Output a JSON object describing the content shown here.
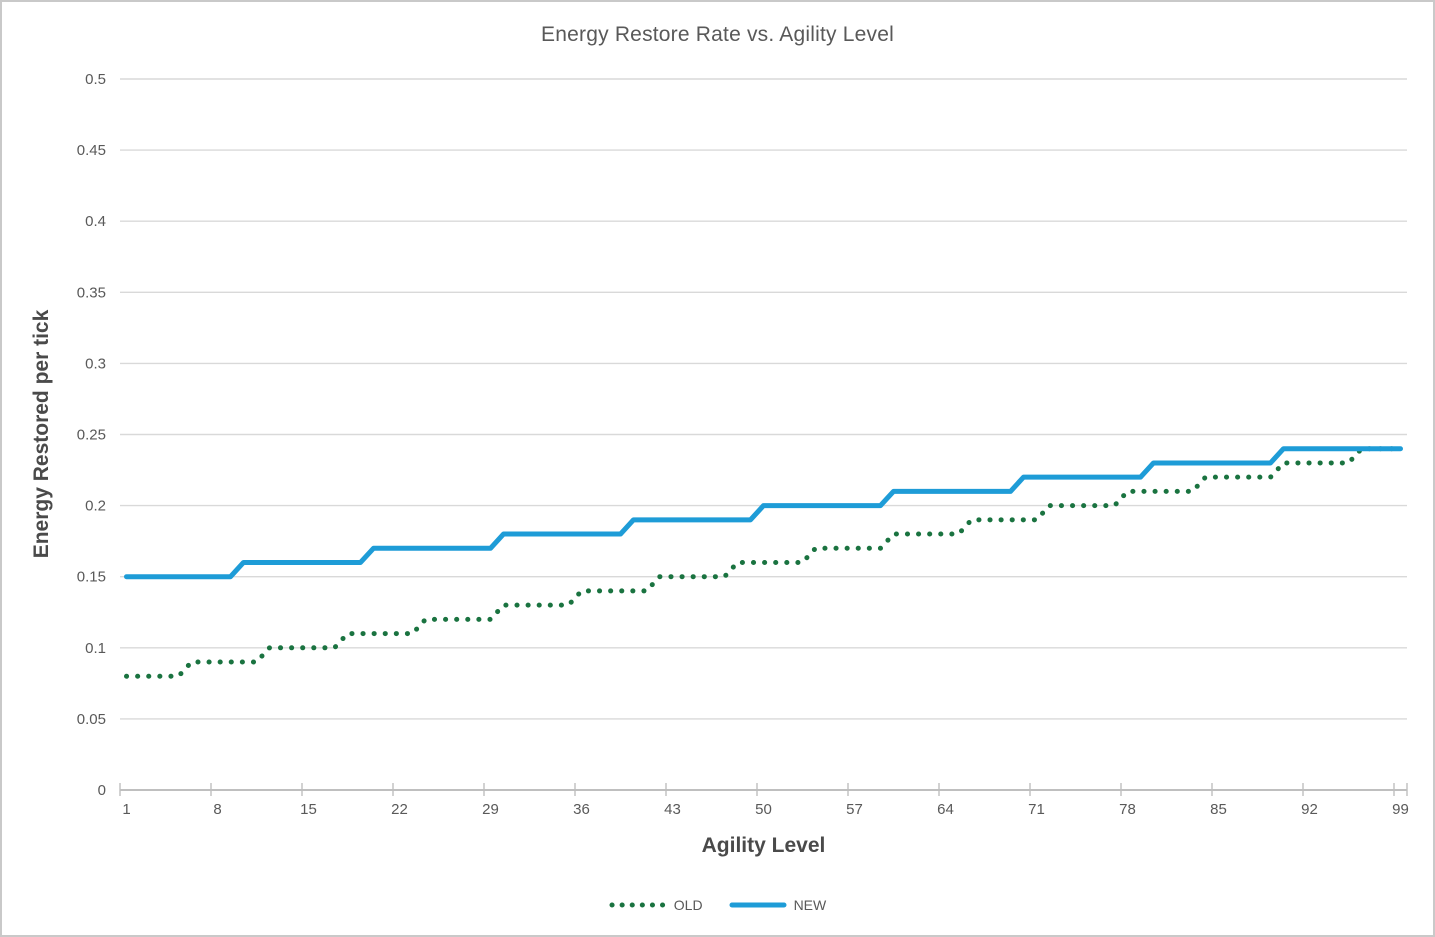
{
  "window": {
    "background": "#ffffff",
    "border_color": "#c9c9c9"
  },
  "chart_data": {
    "type": "line",
    "title": "Energy Restore Rate vs. Agility Level",
    "xlabel": "Agility Level",
    "ylabel": "Energy Restored per tick",
    "ylim": [
      0,
      0.5
    ],
    "grid": "horizontal",
    "legend_position": "bottom",
    "x": [
      1,
      2,
      3,
      4,
      5,
      6,
      7,
      8,
      9,
      10,
      11,
      12,
      13,
      14,
      15,
      16,
      17,
      18,
      19,
      20,
      21,
      22,
      23,
      24,
      25,
      26,
      27,
      28,
      29,
      30,
      31,
      32,
      33,
      34,
      35,
      36,
      37,
      38,
      39,
      40,
      41,
      42,
      43,
      44,
      45,
      46,
      47,
      48,
      49,
      50,
      51,
      52,
      53,
      54,
      55,
      56,
      57,
      58,
      59,
      60,
      61,
      62,
      63,
      64,
      65,
      66,
      67,
      68,
      69,
      70,
      71,
      72,
      73,
      74,
      75,
      76,
      77,
      78,
      79,
      80,
      81,
      82,
      83,
      84,
      85,
      86,
      87,
      88,
      89,
      90,
      91,
      92,
      93,
      94,
      95,
      96,
      97,
      98,
      99
    ],
    "x_tick_labels": [
      1,
      8,
      15,
      22,
      29,
      36,
      43,
      50,
      57,
      64,
      71,
      78,
      85,
      92,
      99
    ],
    "y_ticks": [
      0,
      0.05,
      0.1,
      0.15,
      0.2,
      0.25,
      0.3,
      0.35,
      0.4,
      0.45,
      0.5
    ],
    "y_tick_labels": [
      "0",
      "0.05",
      "0.1",
      "0.15",
      "0.2",
      "0.25",
      "0.3",
      "0.35",
      "0.4",
      "0.45",
      "0.5"
    ],
    "series": [
      {
        "name": "OLD",
        "style": "dotted",
        "color": "#1A7340",
        "values": [
          0.08,
          0.08,
          0.08,
          0.08,
          0.08,
          0.09,
          0.09,
          0.09,
          0.09,
          0.09,
          0.09,
          0.1,
          0.1,
          0.1,
          0.1,
          0.1,
          0.1,
          0.11,
          0.11,
          0.11,
          0.11,
          0.11,
          0.11,
          0.12,
          0.12,
          0.12,
          0.12,
          0.12,
          0.12,
          0.13,
          0.13,
          0.13,
          0.13,
          0.13,
          0.13,
          0.14,
          0.14,
          0.14,
          0.14,
          0.14,
          0.14,
          0.15,
          0.15,
          0.15,
          0.15,
          0.15,
          0.15,
          0.16,
          0.16,
          0.16,
          0.16,
          0.16,
          0.16,
          0.17,
          0.17,
          0.17,
          0.17,
          0.17,
          0.17,
          0.18,
          0.18,
          0.18,
          0.18,
          0.18,
          0.18,
          0.19,
          0.19,
          0.19,
          0.19,
          0.19,
          0.19,
          0.2,
          0.2,
          0.2,
          0.2,
          0.2,
          0.2,
          0.21,
          0.21,
          0.21,
          0.21,
          0.21,
          0.21,
          0.22,
          0.22,
          0.22,
          0.22,
          0.22,
          0.22,
          0.23,
          0.23,
          0.23,
          0.23,
          0.23,
          0.23,
          0.24,
          0.24,
          0.24,
          0.24
        ]
      },
      {
        "name": "NEW",
        "style": "solid",
        "color": "#1E9CD7",
        "values": [
          0.15,
          0.15,
          0.15,
          0.15,
          0.15,
          0.15,
          0.15,
          0.15,
          0.15,
          0.16,
          0.16,
          0.16,
          0.16,
          0.16,
          0.16,
          0.16,
          0.16,
          0.16,
          0.16,
          0.17,
          0.17,
          0.17,
          0.17,
          0.17,
          0.17,
          0.17,
          0.17,
          0.17,
          0.17,
          0.18,
          0.18,
          0.18,
          0.18,
          0.18,
          0.18,
          0.18,
          0.18,
          0.18,
          0.18,
          0.19,
          0.19,
          0.19,
          0.19,
          0.19,
          0.19,
          0.19,
          0.19,
          0.19,
          0.19,
          0.2,
          0.2,
          0.2,
          0.2,
          0.2,
          0.2,
          0.2,
          0.2,
          0.2,
          0.2,
          0.21,
          0.21,
          0.21,
          0.21,
          0.21,
          0.21,
          0.21,
          0.21,
          0.21,
          0.21,
          0.22,
          0.22,
          0.22,
          0.22,
          0.22,
          0.22,
          0.22,
          0.22,
          0.22,
          0.22,
          0.23,
          0.23,
          0.23,
          0.23,
          0.23,
          0.23,
          0.23,
          0.23,
          0.23,
          0.23,
          0.24,
          0.24,
          0.24,
          0.24,
          0.24,
          0.24,
          0.24,
          0.24,
          0.24,
          0.24
        ]
      }
    ],
    "colors": {
      "grid": "#D9D9D9",
      "axis": "#BFBFBF",
      "tick_text": "#595959",
      "title_text": "#595959",
      "axis_title_text": "#4A4A4A",
      "legend_text": "#595959"
    }
  },
  "legend": {
    "items": [
      {
        "label": "OLD"
      },
      {
        "label": "NEW"
      }
    ]
  }
}
